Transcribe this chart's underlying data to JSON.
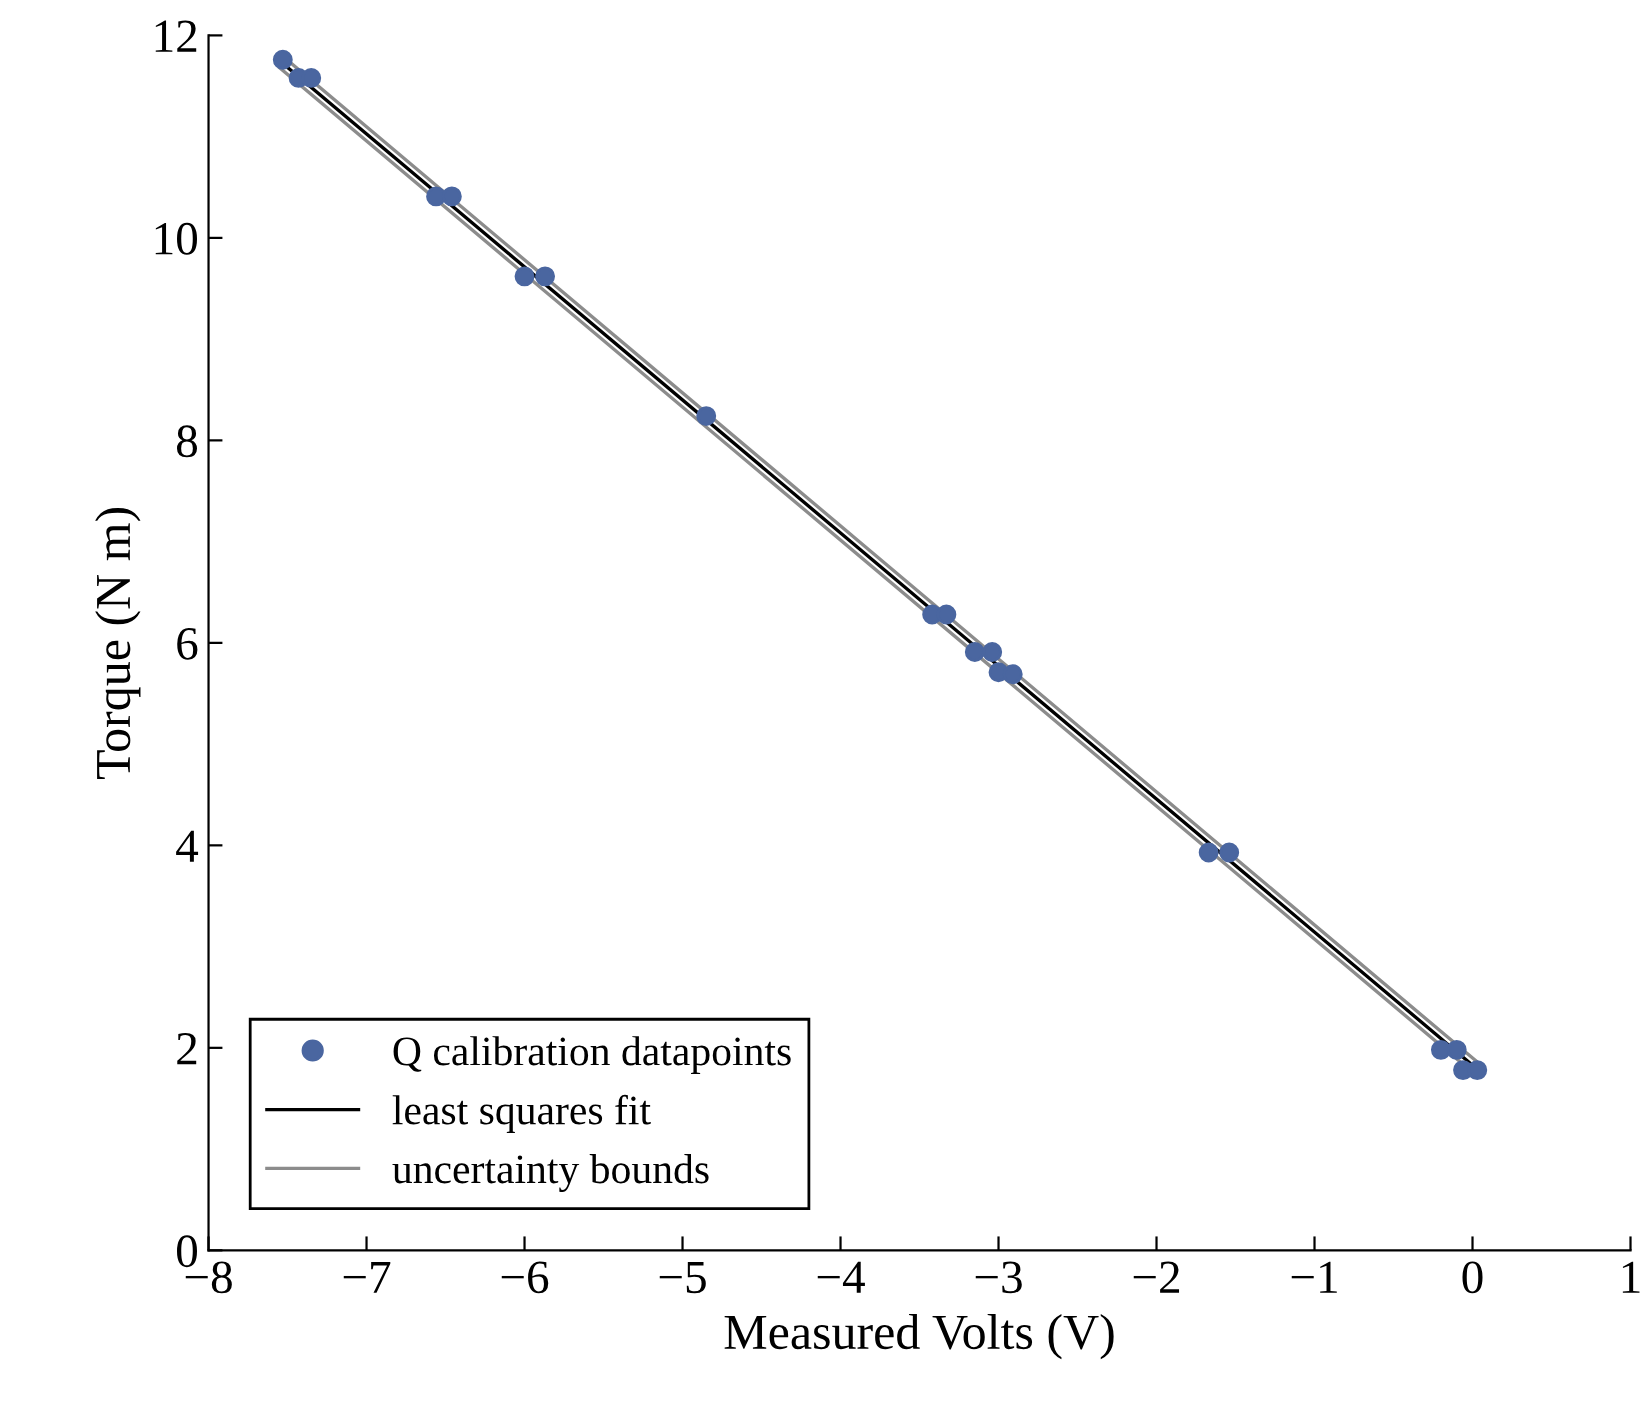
{
  "chart_data": {
    "type": "scatter",
    "xlabel": "Measured Volts (V)",
    "ylabel": "Torque (N m)",
    "xlim": [
      -8,
      1
    ],
    "ylim": [
      0,
      12
    ],
    "xticks": [
      {
        "value": -8,
        "label": "−8"
      },
      {
        "value": -7,
        "label": "−7"
      },
      {
        "value": -6,
        "label": "−6"
      },
      {
        "value": -5,
        "label": "−5"
      },
      {
        "value": -4,
        "label": "−4"
      },
      {
        "value": -3,
        "label": "−3"
      },
      {
        "value": -2,
        "label": "−2"
      },
      {
        "value": -1,
        "label": "−1"
      },
      0,
      1
    ],
    "yticks": [
      0,
      2,
      4,
      6,
      8,
      10,
      12
    ],
    "legend": "bottom left",
    "grid": false,
    "series": [
      {
        "name": "Q calibration datapoints",
        "marker": "circle",
        "color": "#4a66a0",
        "x": [
          -7.53,
          -7.43,
          -7.35,
          -6.56,
          -6.46,
          -6.0,
          -5.87,
          -4.85,
          -3.42,
          -3.33,
          -3.15,
          -3.04,
          -3.0,
          -2.91,
          -1.67,
          -1.54,
          -0.2,
          -0.1,
          -0.06,
          0.03
        ],
        "values": [
          11.76,
          11.58,
          11.58,
          10.41,
          10.41,
          9.62,
          9.62,
          8.24,
          6.28,
          6.28,
          5.91,
          5.91,
          5.71,
          5.69,
          3.93,
          3.93,
          1.98,
          1.98,
          1.78,
          1.78
        ]
      },
      {
        "name": "least squares fit",
        "type": "line",
        "marker": "none",
        "color": "#000000",
        "x": [
          -7.55,
          0.03
        ],
        "values": [
          11.75,
          1.79
        ]
      },
      {
        "name": "uncertainty bounds",
        "type": "line",
        "marker": "none",
        "color": "#8c8c8c",
        "x": [
          -7.55,
          0.03
        ],
        "values": [
          11.82,
          1.86
        ]
      },
      {
        "type": "line",
        "marker": "none",
        "color": "#8c8c8c",
        "x": [
          -7.55,
          0.03
        ],
        "values": [
          11.68,
          1.72
        ]
      }
    ]
  }
}
